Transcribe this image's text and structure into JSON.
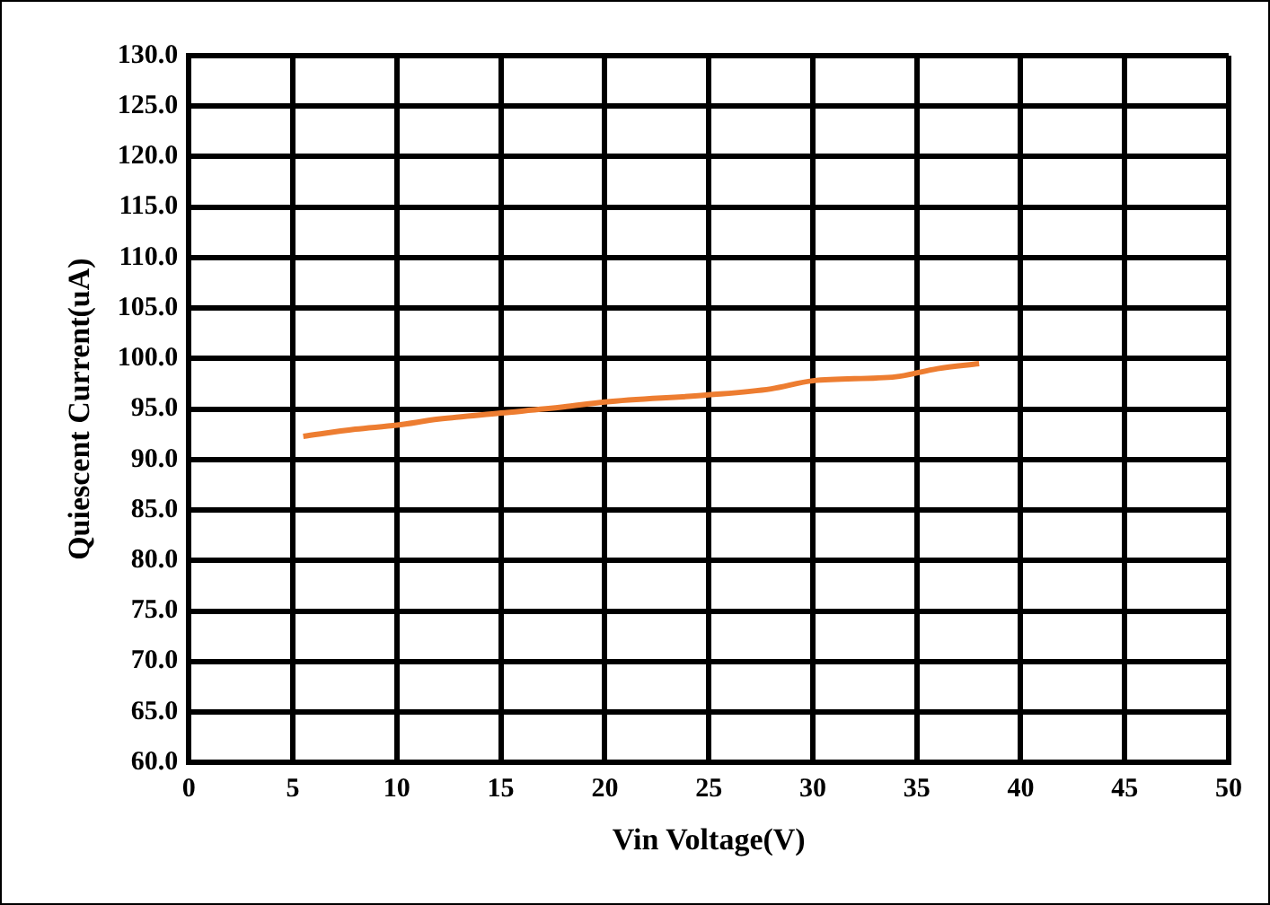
{
  "chart_data": {
    "type": "line",
    "xlabel": "Vin Voltage(V)",
    "ylabel": "Quiescent Current(uA)",
    "xlim": [
      0,
      50
    ],
    "xticks": [
      0,
      5,
      10,
      15,
      20,
      25,
      30,
      35,
      40,
      45,
      50
    ],
    "ylim": [
      60,
      130
    ],
    "yticks": [
      {
        "value": 60,
        "label": "60.0"
      },
      {
        "value": 65,
        "label": "65.0"
      },
      {
        "value": 70,
        "label": "70.0"
      },
      {
        "value": 75,
        "label": "75.0"
      },
      {
        "value": 80,
        "label": "80.0"
      },
      {
        "value": 85,
        "label": "85.0"
      },
      {
        "value": 90,
        "label": "90.0"
      },
      {
        "value": 95,
        "label": "95.0"
      },
      {
        "value": 100,
        "label": "100.0"
      },
      {
        "value": 105,
        "label": "105.0"
      },
      {
        "value": 110,
        "label": "110.0"
      },
      {
        "value": 115,
        "label": "115.0"
      },
      {
        "value": 120,
        "label": "120.0"
      },
      {
        "value": 125,
        "label": "125.0"
      },
      {
        "value": 130,
        "label": "130.0"
      }
    ],
    "grid": true,
    "legend": false,
    "marker": "none",
    "line_style": "solid",
    "series": [
      {
        "color": "#ed7d31",
        "x": [
          5.5,
          8,
          10,
          12,
          15,
          18,
          20,
          25,
          28,
          30,
          34,
          36,
          38
        ],
        "values": [
          92.3,
          93.0,
          93.4,
          94.0,
          94.6,
          95.2,
          95.7,
          96.4,
          97.0,
          97.8,
          98.2,
          99.0,
          99.5
        ]
      }
    ]
  }
}
